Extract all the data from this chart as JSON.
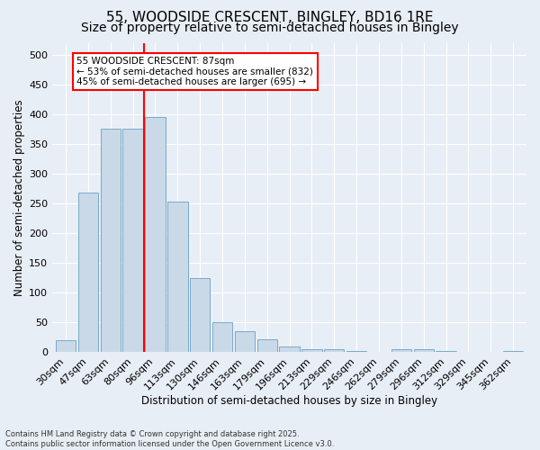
{
  "title_line1": "55, WOODSIDE CRESCENT, BINGLEY, BD16 1RE",
  "title_line2": "Size of property relative to semi-detached houses in Bingley",
  "xlabel": "Distribution of semi-detached houses by size in Bingley",
  "ylabel": "Number of semi-detached properties",
  "bar_color": "#c9d9e8",
  "bar_edge_color": "#7aaac8",
  "bg_color": "#e8eef5",
  "categories": [
    "30sqm",
    "47sqm",
    "63sqm",
    "80sqm",
    "96sqm",
    "113sqm",
    "130sqm",
    "146sqm",
    "163sqm",
    "179sqm",
    "196sqm",
    "213sqm",
    "229sqm",
    "246sqm",
    "262sqm",
    "279sqm",
    "296sqm",
    "312sqm",
    "329sqm",
    "345sqm",
    "362sqm"
  ],
  "values": [
    20,
    268,
    376,
    376,
    395,
    253,
    125,
    50,
    35,
    22,
    10,
    6,
    5,
    3,
    0,
    5,
    5,
    2,
    1,
    1,
    2
  ],
  "property_label": "55 WOODSIDE CRESCENT: 87sqm",
  "pct_smaller": 53,
  "n_smaller": 832,
  "pct_larger": 45,
  "n_larger": 695,
  "vline_position": 3.5,
  "ylim": [
    0,
    520
  ],
  "yticks": [
    0,
    50,
    100,
    150,
    200,
    250,
    300,
    350,
    400,
    450,
    500
  ],
  "footnote_line1": "Contains HM Land Registry data © Crown copyright and database right 2025.",
  "footnote_line2": "Contains public sector information licensed under the Open Government Licence v3.0.",
  "grid_color": "#ffffff",
  "title_fontsize": 11,
  "subtitle_fontsize": 10,
  "axis_fontsize": 8.5,
  "tick_fontsize": 8,
  "annot_fontsize": 7.5
}
